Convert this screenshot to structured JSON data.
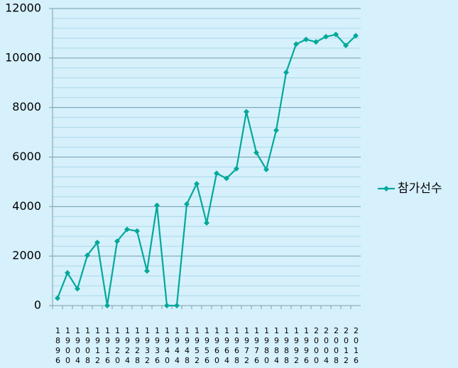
{
  "chart_data": {
    "type": "line",
    "categories": [
      "1896",
      "1900",
      "1904",
      "1908",
      "1912",
      "1916",
      "1920",
      "1924",
      "1928",
      "1932",
      "1936",
      "1940",
      "1944",
      "1948",
      "1952",
      "1956",
      "1960",
      "1964",
      "1968",
      "1972",
      "1976",
      "1980",
      "1984",
      "1988",
      "1992",
      "1996",
      "2000",
      "2004",
      "2008",
      "2012",
      "2016"
    ],
    "series": [
      {
        "name": "참가선수",
        "color": "#00a99a",
        "values": [
          300,
          1320,
          680,
          2030,
          2550,
          0,
          2600,
          3080,
          3010,
          1400,
          4050,
          0,
          0,
          4100,
          4920,
          3340,
          5340,
          5140,
          5530,
          7830,
          6180,
          5500,
          7080,
          9420,
          10560,
          10750,
          10650,
          10860,
          10950,
          10510,
          10900
        ]
      }
    ],
    "ylim": [
      0,
      12000
    ],
    "yticks": [
      0,
      2000,
      4000,
      6000,
      8000,
      10000,
      12000
    ],
    "grid": true,
    "legend": "right"
  }
}
